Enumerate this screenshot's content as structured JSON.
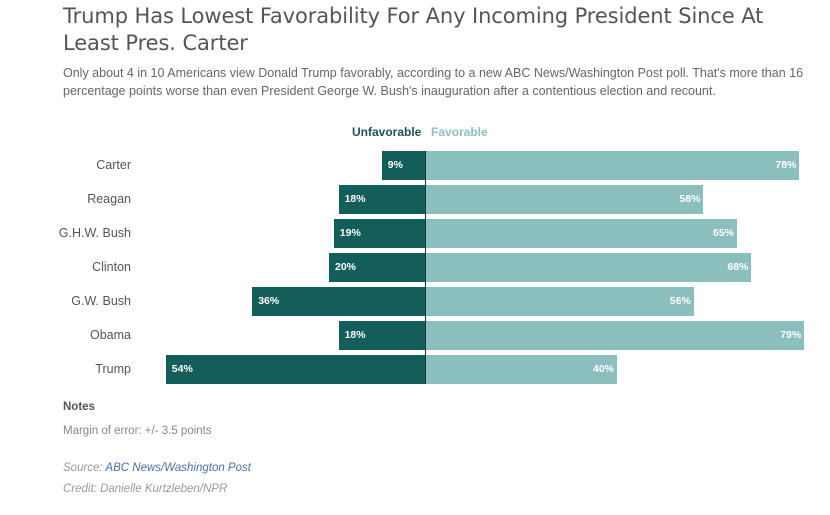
{
  "title": "Trump Has Lowest Favorability For Any Incoming President Since At Least Pres. Carter",
  "subtitle": "Only about 4 in 10 Americans view Donald Trump favorably, according to a new ABC News/Washington Post poll. That's more than 16 percentage points worse than even President George W. Bush's inauguration after a contentious election and recount.",
  "chart_data": {
    "type": "bar",
    "orientation": "horizontal-diverging",
    "categories": [
      "Carter",
      "Reagan",
      "G.H.W. Bush",
      "Clinton",
      "G.W. Bush",
      "Obama",
      "Trump"
    ],
    "series": [
      {
        "name": "Unfavorable",
        "values": [
          9,
          18,
          19,
          20,
          36,
          18,
          54
        ],
        "color": "#135e5a"
      },
      {
        "name": "Favorable",
        "values": [
          78,
          58,
          65,
          68,
          56,
          79,
          40
        ],
        "color": "#8bbfbd"
      }
    ],
    "unit": "%",
    "legend": "top-center",
    "grid": false
  },
  "notes": {
    "heading": "Notes",
    "text": "Margin of error: +/- 3.5 points"
  },
  "source": {
    "label": "Source:",
    "link": "ABC News/Washington Post"
  },
  "credit": "Credit: Danielle Kurtzleben/NPR"
}
